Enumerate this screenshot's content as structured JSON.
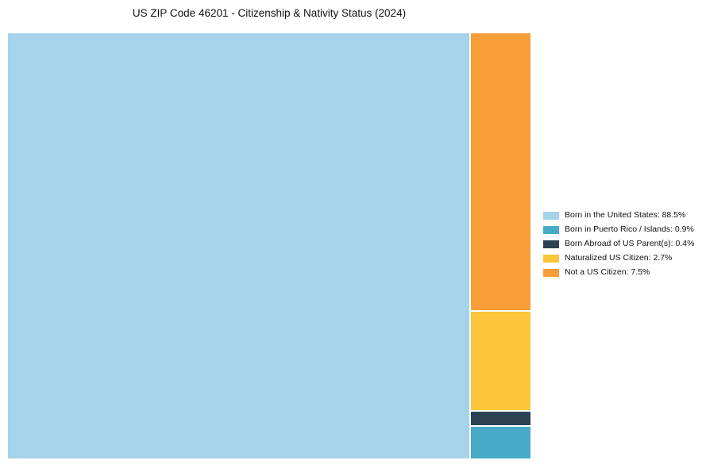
{
  "title": "US ZIP Code 46201 - Citizenship & Nativity Status (2024)",
  "chart_data": {
    "type": "treemap",
    "title": "US ZIP Code 46201 - Citizenship & Nativity Status (2024)",
    "categories": [
      "Born in the United States",
      "Born in Puerto Rico / Islands",
      "Born Abroad of US Parent(s)",
      "Naturalized US Citizen",
      "Not a US Citizen"
    ],
    "values": [
      88.5,
      0.9,
      0.4,
      2.7,
      7.5
    ],
    "unit": "%",
    "legend_position": "right",
    "layout": "largest category fills left block; remaining categories stacked in narrow right column, top to bottom: Not a US Citizen, Naturalized US Citizen, Born Abroad of US Parent(s), Born in Puerto Rico / Islands"
  },
  "colors": {
    "background": "#ffffff",
    "born_us": "#a5d3e9",
    "puerto_rico": "#47abc8",
    "born_abroad": "#2b4255",
    "naturalized": "#fdc53c",
    "not_citizen": "#f99d38"
  },
  "legend": {
    "items": [
      {
        "label": "Born in the United States: 88.5%",
        "color": "#a5d3e9"
      },
      {
        "label": "Born in Puerto Rico / Islands: 0.9%",
        "color": "#47abc8"
      },
      {
        "label": "Born Abroad of US Parent(s): 0.4%",
        "color": "#2b4255"
      },
      {
        "label": "Naturalized US Citizen: 2.7%",
        "color": "#fdc53c"
      },
      {
        "label": "Not a US Citizen: 7.5%",
        "color": "#f99d38"
      }
    ]
  }
}
